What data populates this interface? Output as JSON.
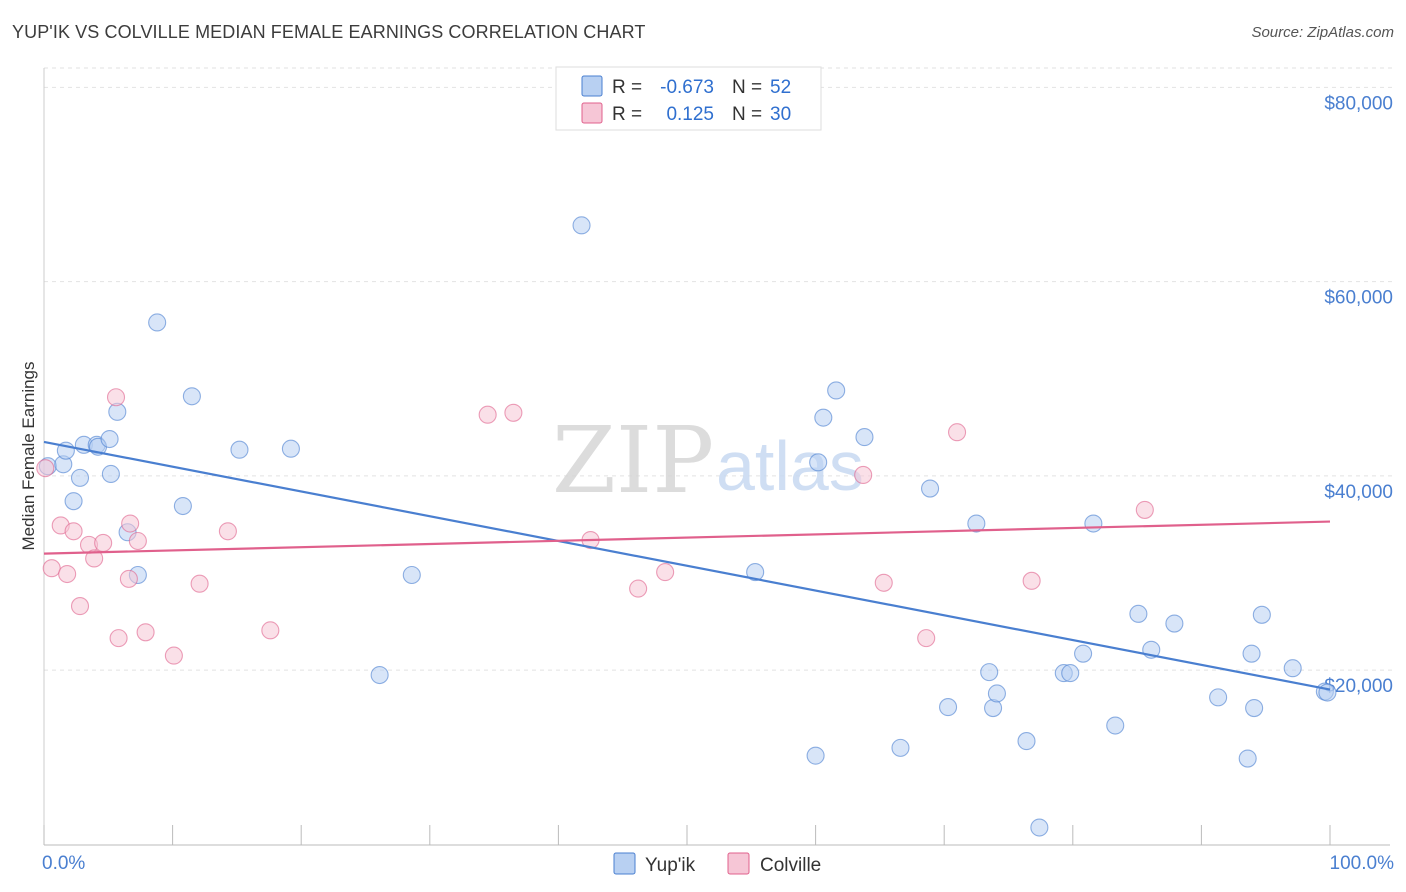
{
  "title": "YUP'IK VS COLVILLE MEDIAN FEMALE EARNINGS CORRELATION CHART",
  "source": "Source: ZipAtlas.com",
  "watermark": {
    "zip": "ZIP",
    "atlas": "atlas"
  },
  "legend_top": [
    {
      "r_label": "R =",
      "r_value": "-0.673",
      "n_label": "N =",
      "n_value": "52",
      "color": "#4a7fd0"
    },
    {
      "r_label": "R =",
      "r_value": "0.125",
      "n_label": "N =",
      "n_value": "30",
      "color": "#e0608c"
    }
  ],
  "chart_data": {
    "type": "scatter",
    "ylabel": "Median Female Earnings",
    "xlabel": "",
    "xlim": [
      0,
      100
    ],
    "ylim": [
      2000,
      82000
    ],
    "x_tick_labels": {
      "left": "0.0%",
      "right": "100.0%"
    },
    "y_ticks": [
      {
        "value": 20000,
        "label": "$20,000"
      },
      {
        "value": 40000,
        "label": "$40,000"
      },
      {
        "value": 60000,
        "label": "$60,000"
      },
      {
        "value": 80000,
        "label": "$80,000"
      }
    ],
    "grid": true,
    "legend_position": "bottom-center",
    "series": [
      {
        "name": "Yup'ik",
        "color": "#4a7fd0",
        "fill": "#b8d0f2",
        "trend": {
          "x": [
            0,
            100
          ],
          "y": [
            43500,
            18000
          ]
        },
        "points": [
          [
            0.3,
            41000
          ],
          [
            1.5,
            41200
          ],
          [
            1.7,
            42600
          ],
          [
            2.3,
            37400
          ],
          [
            2.8,
            39800
          ],
          [
            3.1,
            43200
          ],
          [
            4.1,
            43200
          ],
          [
            4.2,
            43000
          ],
          [
            5.1,
            43800
          ],
          [
            5.2,
            40200
          ],
          [
            5.7,
            46600
          ],
          [
            6.5,
            34200
          ],
          [
            7.3,
            29800
          ],
          [
            8.8,
            55800
          ],
          [
            10.8,
            36900
          ],
          [
            11.5,
            48200
          ],
          [
            15.2,
            42700
          ],
          [
            19.2,
            42800
          ],
          [
            26.1,
            19500
          ],
          [
            28.6,
            29800
          ],
          [
            41.8,
            65800
          ],
          [
            55.3,
            30100
          ],
          [
            60.0,
            11200
          ],
          [
            60.2,
            41400
          ],
          [
            60.6,
            46000
          ],
          [
            61.6,
            48800
          ],
          [
            63.8,
            44000
          ],
          [
            66.6,
            12000
          ],
          [
            68.9,
            38700
          ],
          [
            70.3,
            16200
          ],
          [
            72.5,
            35100
          ],
          [
            73.5,
            19800
          ],
          [
            73.8,
            16100
          ],
          [
            74.1,
            17600
          ],
          [
            76.4,
            12700
          ],
          [
            77.4,
            3800
          ],
          [
            79.3,
            19700
          ],
          [
            79.8,
            19700
          ],
          [
            80.8,
            21700
          ],
          [
            81.6,
            35100
          ],
          [
            83.3,
            14300
          ],
          [
            85.1,
            25800
          ],
          [
            86.1,
            22100
          ],
          [
            87.9,
            24800
          ],
          [
            91.3,
            17200
          ],
          [
            93.6,
            10900
          ],
          [
            93.9,
            21700
          ],
          [
            94.1,
            16100
          ],
          [
            94.7,
            25700
          ],
          [
            97.1,
            20200
          ],
          [
            99.6,
            17800
          ],
          [
            99.8,
            17700
          ]
        ]
      },
      {
        "name": "Colville",
        "color": "#e0608c",
        "fill": "#f6c6d6",
        "trend": {
          "x": [
            0,
            100
          ],
          "y": [
            32000,
            35300
          ]
        },
        "points": [
          [
            0.1,
            40800
          ],
          [
            0.6,
            30500
          ],
          [
            1.3,
            34900
          ],
          [
            1.8,
            29900
          ],
          [
            2.3,
            34300
          ],
          [
            2.8,
            26600
          ],
          [
            3.5,
            32900
          ],
          [
            3.9,
            31500
          ],
          [
            4.6,
            33100
          ],
          [
            5.6,
            48100
          ],
          [
            5.8,
            23300
          ],
          [
            6.6,
            29400
          ],
          [
            6.7,
            35100
          ],
          [
            7.3,
            33300
          ],
          [
            7.9,
            23900
          ],
          [
            10.1,
            21500
          ],
          [
            12.1,
            28900
          ],
          [
            14.3,
            34300
          ],
          [
            17.6,
            24100
          ],
          [
            34.5,
            46300
          ],
          [
            36.5,
            46500
          ],
          [
            42.5,
            33400
          ],
          [
            46.2,
            28400
          ],
          [
            48.3,
            30100
          ],
          [
            63.7,
            40100
          ],
          [
            65.3,
            29000
          ],
          [
            68.6,
            23300
          ],
          [
            71.0,
            44500
          ],
          [
            76.8,
            29200
          ],
          [
            85.6,
            36500
          ]
        ]
      }
    ]
  }
}
